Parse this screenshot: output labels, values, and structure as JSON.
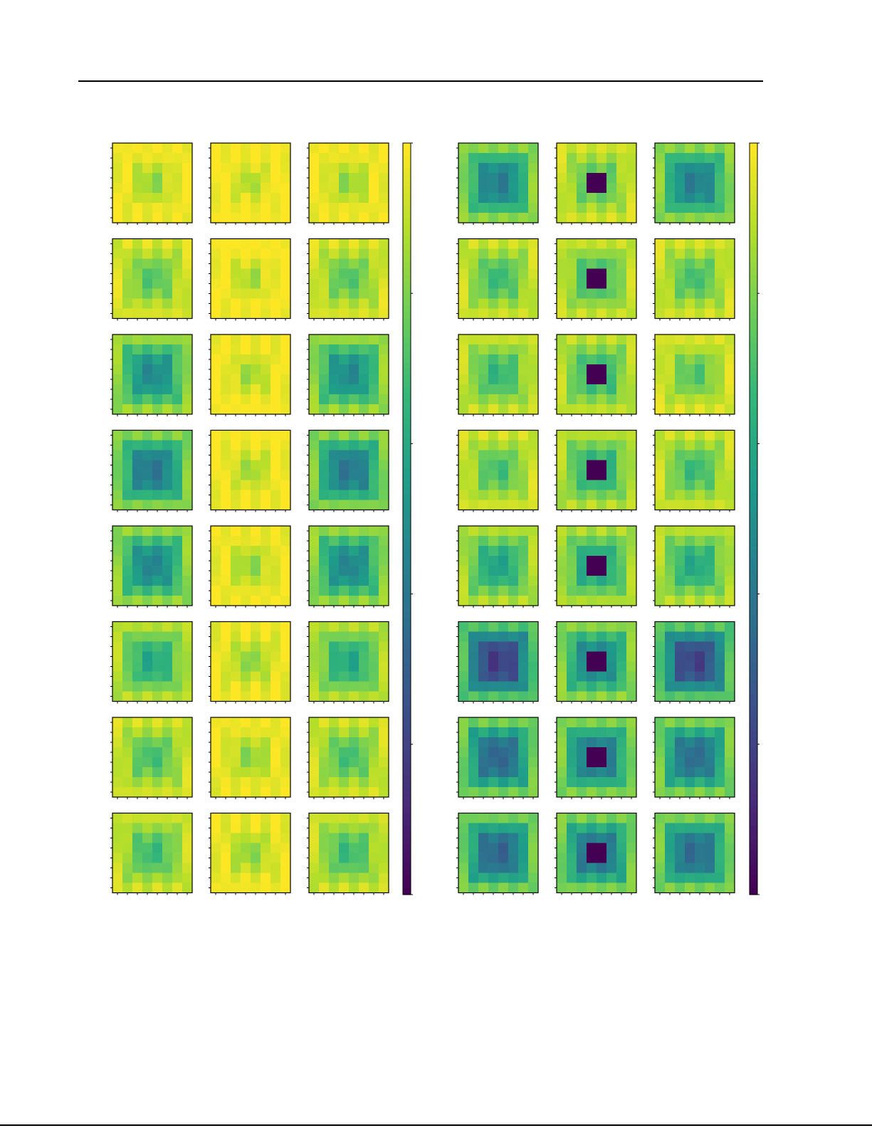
{
  "chart_data": {
    "type": "heatmap",
    "colormap": "viridis",
    "panels": [
      {
        "columns": 3,
        "rows": 8,
        "grid_size": 8,
        "maps": [
          [
            0.96,
            1.0,
            0.96
          ],
          [
            0.85,
            0.99,
            0.85
          ],
          [
            0.6,
            0.98,
            0.6
          ],
          [
            0.52,
            0.98,
            0.52
          ],
          [
            0.58,
            0.96,
            0.58
          ],
          [
            0.72,
            0.95,
            0.72
          ],
          [
            0.82,
            0.95,
            0.82
          ],
          [
            0.8,
            0.95,
            0.8
          ]
        ]
      },
      {
        "columns": 3,
        "rows": 8,
        "grid_size": 8,
        "maps": [
          [
            0.55,
            0.82,
            0.55
          ],
          [
            0.8,
            0.78,
            0.82
          ],
          [
            0.78,
            0.75,
            0.85
          ],
          [
            0.82,
            0.72,
            0.8
          ],
          [
            0.7,
            0.68,
            0.72
          ],
          [
            0.3,
            0.55,
            0.32
          ],
          [
            0.45,
            0.5,
            0.48
          ],
          [
            0.45,
            0.48,
            0.48
          ]
        ]
      }
    ],
    "colorbars": [
      {
        "ticks": 6
      },
      {
        "ticks": 6
      }
    ],
    "title": "",
    "xlabel": "",
    "ylabel": ""
  }
}
